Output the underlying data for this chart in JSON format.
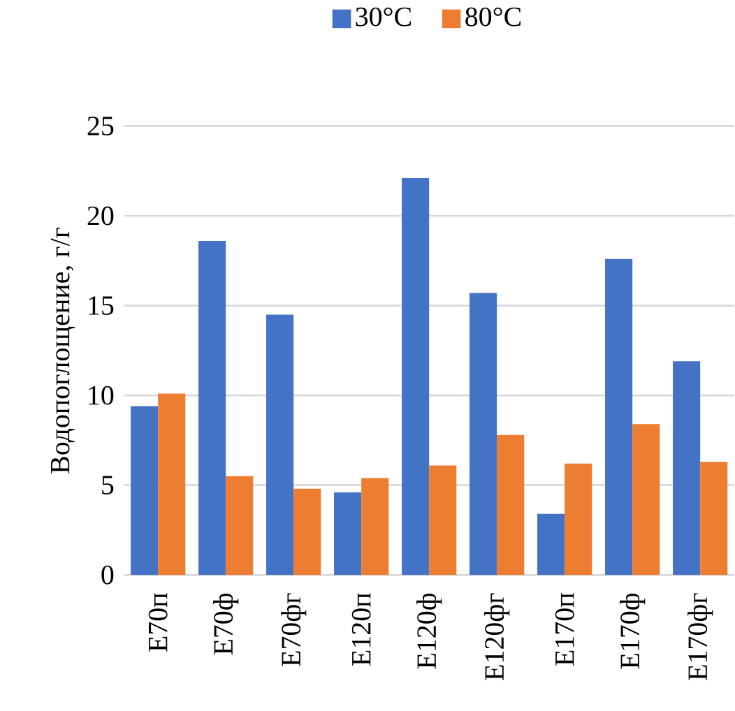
{
  "chart_data": {
    "type": "bar",
    "ylabel": "Водопоглощение, г/г",
    "categories": [
      "Е70п",
      "Е70ф",
      "Е70фг",
      "Е120п",
      "Е120ф",
      "Е120фг",
      "Е170п",
      "Е170ф",
      "Е170фг"
    ],
    "series": [
      {
        "name": "30°C",
        "color": "#4472c4",
        "values": [
          9.4,
          18.6,
          14.5,
          4.6,
          22.1,
          15.7,
          3.4,
          17.6,
          11.9
        ]
      },
      {
        "name": "80°C",
        "color": "#ed7d31",
        "values": [
          10.1,
          5.5,
          4.8,
          5.4,
          6.1,
          7.8,
          6.2,
          8.4,
          6.3
        ]
      }
    ],
    "ylim": [
      0,
      25
    ],
    "yticks": [
      0,
      5,
      10,
      15,
      20,
      25
    ],
    "grid": "y",
    "legend": "top"
  }
}
